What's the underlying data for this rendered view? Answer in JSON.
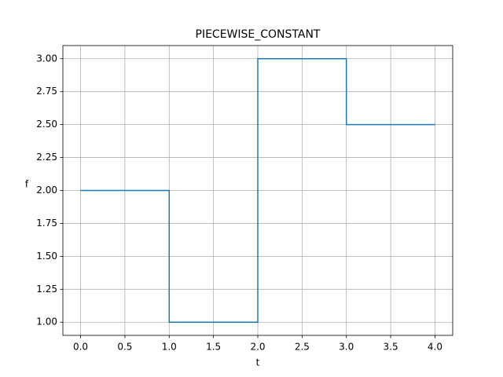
{
  "chart_data": {
    "type": "line",
    "title": "PIECEWISE_CONSTANT",
    "xlabel": "t",
    "ylabel": "f",
    "x": [
      0,
      1,
      1,
      2,
      2,
      3,
      3,
      4
    ],
    "series": [
      {
        "color": "#1f77b4",
        "values": [
          2,
          2,
          1,
          1,
          3,
          3,
          2.5,
          2.5
        ]
      }
    ],
    "xlim": [
      -0.2,
      4.2
    ],
    "ylim": [
      0.9,
      3.1
    ],
    "xticks": [
      {
        "value": 0,
        "label": "0.0"
      },
      {
        "value": 0.5,
        "label": "0.5"
      },
      {
        "value": 1,
        "label": "1.0"
      },
      {
        "value": 1.5,
        "label": "1.5"
      },
      {
        "value": 2,
        "label": "2.0"
      },
      {
        "value": 2.5,
        "label": "2.5"
      },
      {
        "value": 3,
        "label": "3.0"
      },
      {
        "value": 3.5,
        "label": "3.5"
      },
      {
        "value": 4,
        "label": "4.0"
      }
    ],
    "yticks": [
      {
        "value": 1,
        "label": "1.00"
      },
      {
        "value": 1.25,
        "label": "1.25"
      },
      {
        "value": 1.5,
        "label": "1.50"
      },
      {
        "value": 1.75,
        "label": "1.75"
      },
      {
        "value": 2,
        "label": "2.00"
      },
      {
        "value": 2.25,
        "label": "2.25"
      },
      {
        "value": 2.5,
        "label": "2.50"
      },
      {
        "value": 2.75,
        "label": "2.75"
      },
      {
        "value": 3,
        "label": "3.00"
      }
    ],
    "grid": true
  }
}
